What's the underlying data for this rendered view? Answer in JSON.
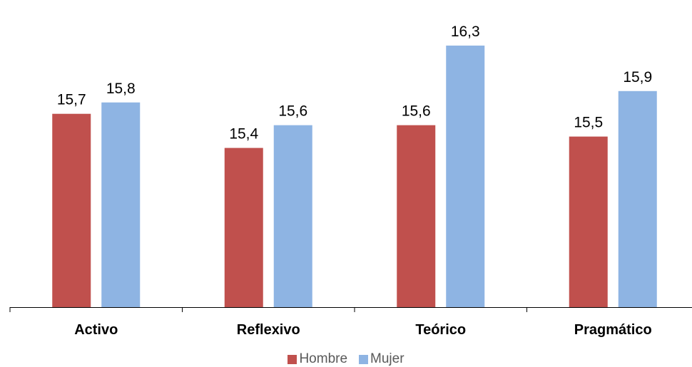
{
  "chart_data": {
    "type": "bar",
    "categories": [
      "Activo",
      "Reflexivo",
      "Teórico",
      "Pragmático"
    ],
    "series": [
      {
        "name": "Hombre",
        "values": [
          15.7,
          15.4,
          15.6,
          15.5
        ],
        "labels": [
          "15,7",
          "15,4",
          "15,6",
          "15,5"
        ],
        "color": "#c0504d"
      },
      {
        "name": "Mujer",
        "values": [
          15.8,
          15.6,
          16.3,
          15.9
        ],
        "labels": [
          "15,8",
          "15,6",
          "16,3",
          "15,9"
        ],
        "color": "#8eb4e3"
      }
    ],
    "ylim": [
      14.0,
      16.4
    ],
    "grid": false,
    "legend": "bottom"
  }
}
